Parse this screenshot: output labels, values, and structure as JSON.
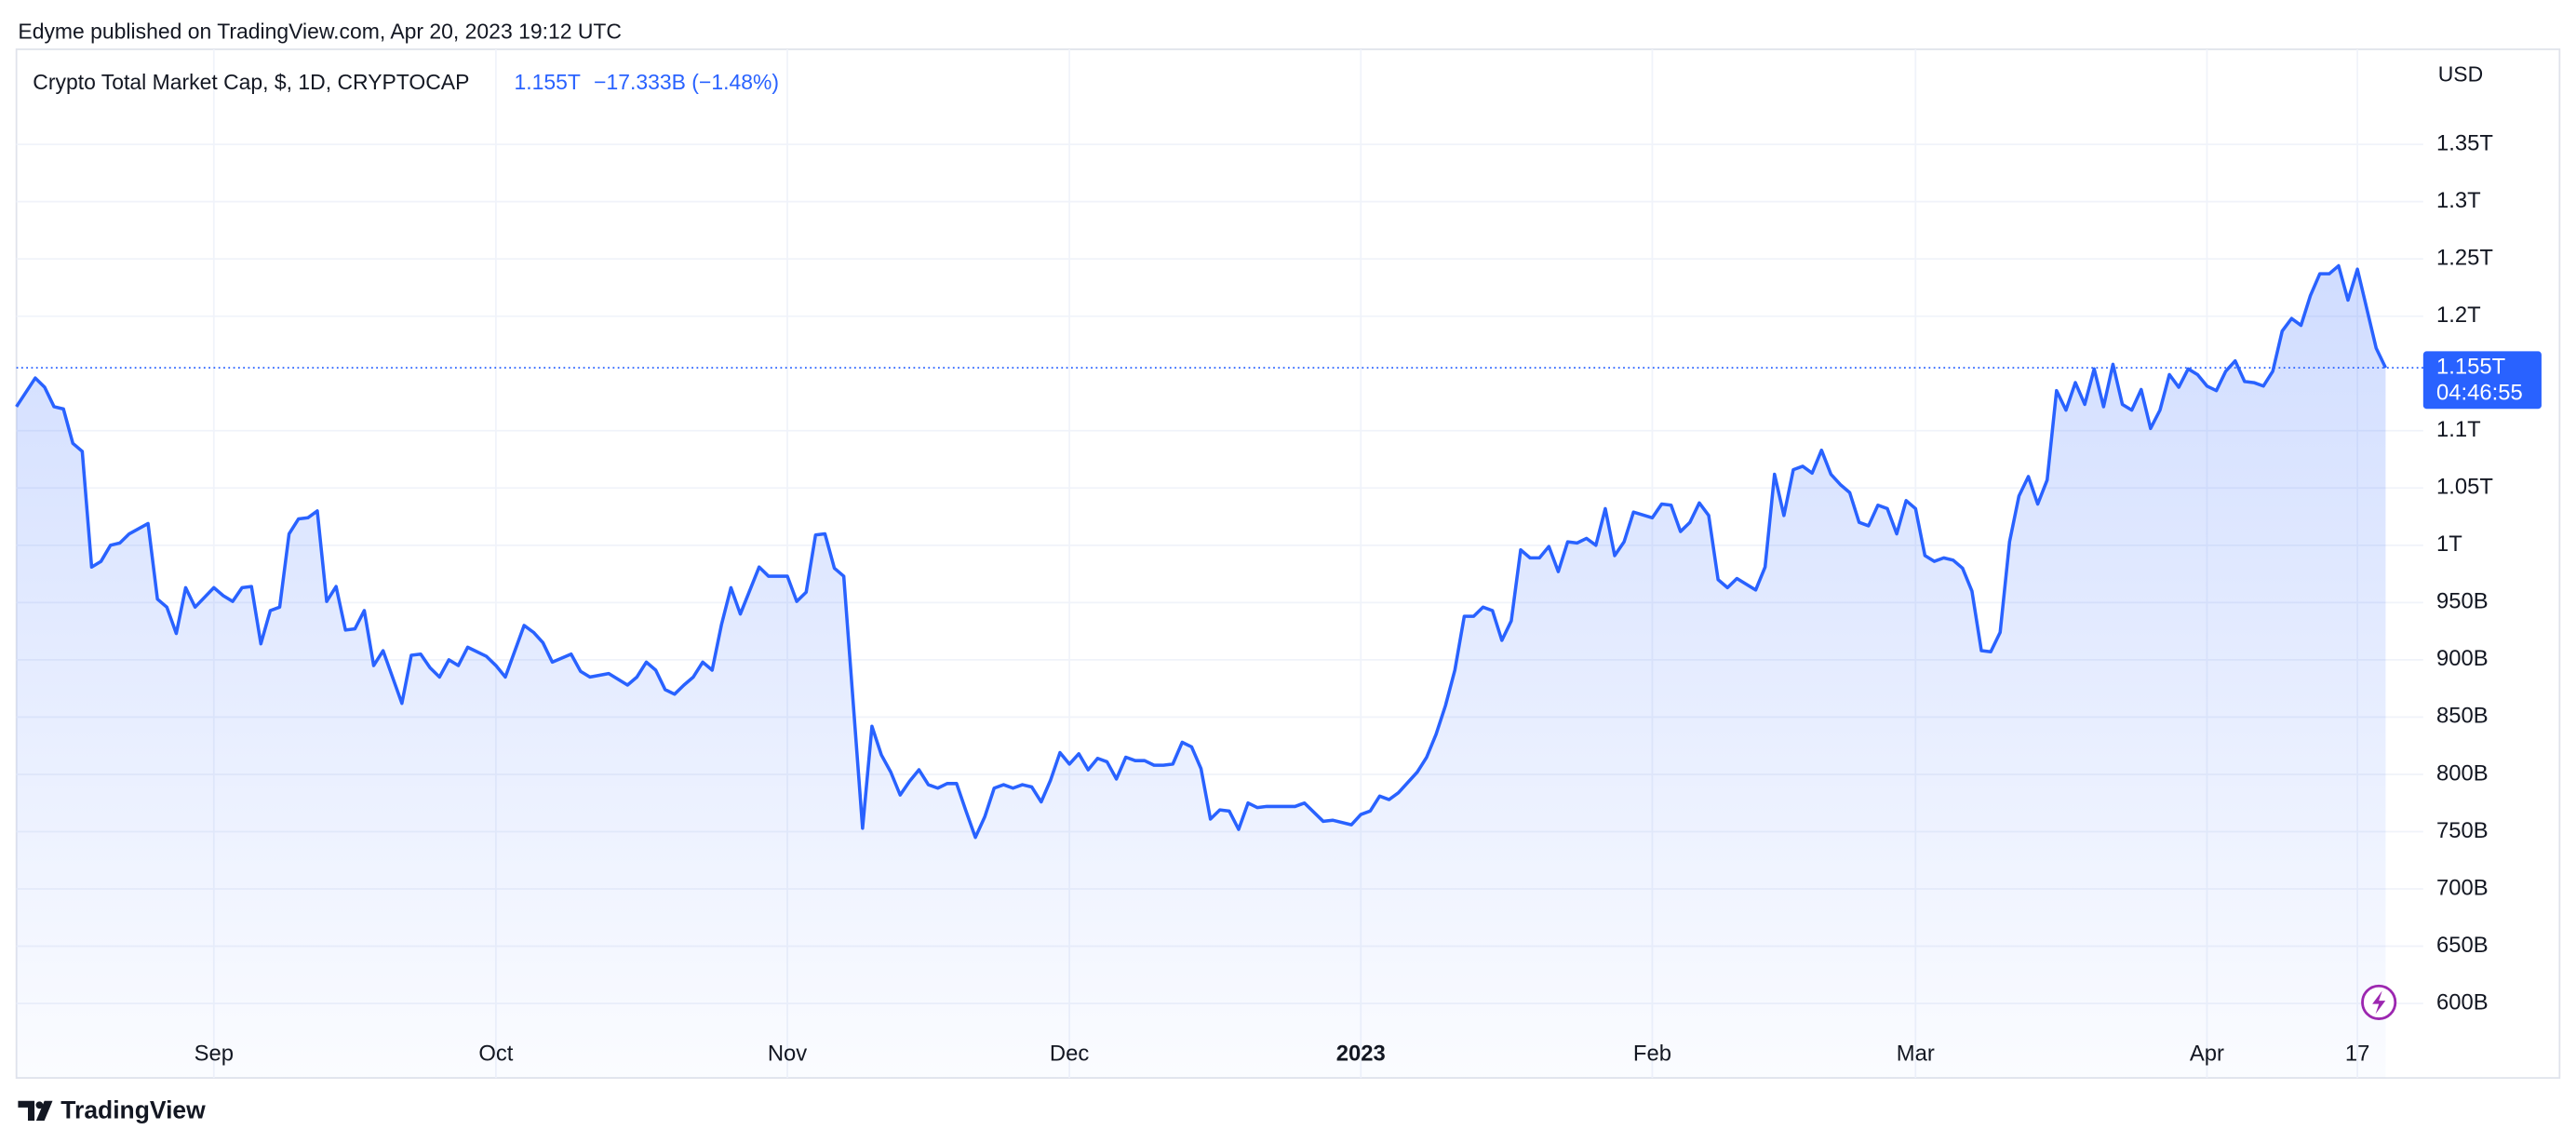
{
  "header": {
    "published": "Edyme published on TradingView.com, Apr 20, 2023 19:12 UTC"
  },
  "chart_data": {
    "type": "line",
    "title": "Crypto Total Market Cap, $, 1D, CRYPTOCAP",
    "change": "−17.333B (−1.48%)",
    "currency": "USD",
    "countdown": "04:46:55",
    "price_line": {
      "value": 1155,
      "label": "1.155T"
    },
    "color": "#2962ff",
    "grid": true,
    "xlim": [
      "2022-08-11",
      "2023-04-24"
    ],
    "ylim": [
      535,
      1433
    ],
    "xticks": [
      {
        "value": "2022-09-01",
        "label": "Sep"
      },
      {
        "value": "2022-10-01",
        "label": "Oct"
      },
      {
        "value": "2022-11-01",
        "label": "Nov"
      },
      {
        "value": "2022-12-01",
        "label": "Dec"
      },
      {
        "value": "2023-01-01",
        "label": "2023"
      },
      {
        "value": "2023-02-01",
        "label": "Feb"
      },
      {
        "value": "2023-03-01",
        "label": "Mar"
      },
      {
        "value": "2023-04-01",
        "label": "Apr"
      },
      {
        "value": "2023-04-17",
        "label": "17"
      }
    ],
    "yticks": [
      {
        "value": 600,
        "label": "600B"
      },
      {
        "value": 650,
        "label": "650B"
      },
      {
        "value": 700,
        "label": "700B"
      },
      {
        "value": 750,
        "label": "750B"
      },
      {
        "value": 800,
        "label": "800B"
      },
      {
        "value": 850,
        "label": "850B"
      },
      {
        "value": 900,
        "label": "900B"
      },
      {
        "value": 950,
        "label": "950B"
      },
      {
        "value": 1000,
        "label": "1T"
      },
      {
        "value": 1050,
        "label": "1.05T"
      },
      {
        "value": 1100,
        "label": "1.1T"
      },
      {
        "value": 1200,
        "label": "1.2T"
      },
      {
        "value": 1250,
        "label": "1.25T"
      },
      {
        "value": 1300,
        "label": "1.3T"
      },
      {
        "value": 1350,
        "label": "1.35T"
      }
    ],
    "x": [
      "2022-08-11",
      "2022-08-13",
      "2022-08-14",
      "2022-08-15",
      "2022-08-16",
      "2022-08-17",
      "2022-08-18",
      "2022-08-19",
      "2022-08-20",
      "2022-08-21",
      "2022-08-22",
      "2022-08-23",
      "2022-08-25",
      "2022-08-26",
      "2022-08-27",
      "2022-08-28",
      "2022-08-29",
      "2022-08-30",
      "2022-09-01",
      "2022-09-02",
      "2022-09-03",
      "2022-09-04",
      "2022-09-05",
      "2022-09-06",
      "2022-09-07",
      "2022-09-08",
      "2022-09-09",
      "2022-09-10",
      "2022-09-11",
      "2022-09-12",
      "2022-09-13",
      "2022-09-14",
      "2022-09-15",
      "2022-09-16",
      "2022-09-17",
      "2022-09-18",
      "2022-09-19",
      "2022-09-21",
      "2022-09-22",
      "2022-09-23",
      "2022-09-24",
      "2022-09-25",
      "2022-09-26",
      "2022-09-27",
      "2022-09-28",
      "2022-09-30",
      "2022-10-01",
      "2022-10-02",
      "2022-10-04",
      "2022-10-05",
      "2022-10-06",
      "2022-10-07",
      "2022-10-09",
      "2022-10-10",
      "2022-10-11",
      "2022-10-13",
      "2022-10-15",
      "2022-10-16",
      "2022-10-17",
      "2022-10-18",
      "2022-10-19",
      "2022-10-20",
      "2022-10-21",
      "2022-10-22",
      "2022-10-23",
      "2022-10-24",
      "2022-10-25",
      "2022-10-26",
      "2022-10-27",
      "2022-10-29",
      "2022-10-30",
      "2022-11-01",
      "2022-11-02",
      "2022-11-03",
      "2022-11-04",
      "2022-11-05",
      "2022-11-06",
      "2022-11-07",
      "2022-11-09",
      "2022-11-10",
      "2022-11-11",
      "2022-11-12",
      "2022-11-13",
      "2022-11-14",
      "2022-11-15",
      "2022-11-16",
      "2022-11-17",
      "2022-11-18",
      "2022-11-19",
      "2022-11-20",
      "2022-11-21",
      "2022-11-22",
      "2022-11-23",
      "2022-11-24",
      "2022-11-25",
      "2022-11-26",
      "2022-11-27",
      "2022-11-28",
      "2022-11-29",
      "2022-11-30",
      "2022-12-01",
      "2022-12-02",
      "2022-12-03",
      "2022-12-04",
      "2022-12-05",
      "2022-12-06",
      "2022-12-07",
      "2022-12-08",
      "2022-12-09",
      "2022-12-10",
      "2022-12-11",
      "2022-12-12",
      "2022-12-13",
      "2022-12-14",
      "2022-12-15",
      "2022-12-16",
      "2022-12-17",
      "2022-12-18",
      "2022-12-19",
      "2022-12-20",
      "2022-12-21",
      "2022-12-22",
      "2022-12-24",
      "2022-12-25",
      "2022-12-26",
      "2022-12-28",
      "2022-12-29",
      "2022-12-31",
      "2023-01-01",
      "2023-01-02",
      "2023-01-03",
      "2023-01-04",
      "2023-01-05",
      "2023-01-07",
      "2023-01-08",
      "2023-01-09",
      "2023-01-10",
      "2023-01-11",
      "2023-01-12",
      "2023-01-13",
      "2023-01-14",
      "2023-01-15",
      "2023-01-16",
      "2023-01-17",
      "2023-01-18",
      "2023-01-19",
      "2023-01-20",
      "2023-01-21",
      "2023-01-22",
      "2023-01-23",
      "2023-01-24",
      "2023-01-25",
      "2023-01-26",
      "2023-01-27",
      "2023-01-28",
      "2023-01-29",
      "2023-01-30",
      "2023-02-01",
      "2023-02-02",
      "2023-02-03",
      "2023-02-04",
      "2023-02-05",
      "2023-02-06",
      "2023-02-07",
      "2023-02-08",
      "2023-02-09",
      "2023-02-10",
      "2023-02-12",
      "2023-02-13",
      "2023-02-14",
      "2023-02-15",
      "2023-02-16",
      "2023-02-17",
      "2023-02-18",
      "2023-02-19",
      "2023-02-20",
      "2023-02-21",
      "2023-02-22",
      "2023-02-23",
      "2023-02-24",
      "2023-02-25",
      "2023-02-26",
      "2023-02-27",
      "2023-02-28",
      "2023-03-01",
      "2023-03-02",
      "2023-03-03",
      "2023-03-04",
      "2023-03-05",
      "2023-03-06",
      "2023-03-07",
      "2023-03-08",
      "2023-03-09",
      "2023-03-10",
      "2023-03-11",
      "2023-03-12",
      "2023-03-13",
      "2023-03-14",
      "2023-03-15",
      "2023-03-16",
      "2023-03-17",
      "2023-03-18",
      "2023-03-19",
      "2023-03-20",
      "2023-03-21",
      "2023-03-22",
      "2023-03-23",
      "2023-03-24",
      "2023-03-25",
      "2023-03-26",
      "2023-03-27",
      "2023-03-28",
      "2023-03-29",
      "2023-03-30",
      "2023-03-31",
      "2023-04-01",
      "2023-04-02",
      "2023-04-03",
      "2023-04-04",
      "2023-04-05",
      "2023-04-06",
      "2023-04-07",
      "2023-04-08",
      "2023-04-09",
      "2023-04-10",
      "2023-04-11",
      "2023-04-12",
      "2023-04-13",
      "2023-04-14",
      "2023-04-15",
      "2023-04-16",
      "2023-04-17",
      "2023-04-19",
      "2023-04-20"
    ],
    "values": [
      1121,
      1146,
      1138,
      1121,
      1119,
      1089,
      1082,
      981,
      986,
      1000,
      1002,
      1010,
      1019,
      953,
      946,
      923,
      963,
      946,
      963,
      956,
      951,
      963,
      964,
      914,
      943,
      946,
      1010,
      1023,
      1024,
      1030,
      951,
      964,
      926,
      927,
      943,
      895,
      908,
      862,
      904,
      905,
      893,
      885,
      900,
      895,
      911,
      903,
      895,
      885,
      930,
      924,
      915,
      898,
      905,
      890,
      885,
      888,
      878,
      885,
      898,
      891,
      874,
      870,
      878,
      885,
      898,
      891,
      931,
      963,
      940,
      981,
      973,
      973,
      951,
      959,
      1009,
      1010,
      980,
      973,
      753,
      842,
      817,
      802,
      782,
      794,
      804,
      791,
      788,
      792,
      792,
      768,
      745,
      763,
      788,
      791,
      788,
      791,
      789,
      776,
      795,
      819,
      809,
      818,
      804,
      814,
      811,
      796,
      815,
      812,
      812,
      808,
      808,
      809,
      828,
      824,
      805,
      761,
      769,
      768,
      752,
      775,
      771,
      772,
      772,
      772,
      775,
      759,
      760,
      756,
      765,
      768,
      781,
      778,
      784,
      802,
      815,
      835,
      860,
      891,
      938,
      938,
      946,
      943,
      917,
      934,
      996,
      989,
      989,
      999,
      977,
      1003,
      1002,
      1006,
      1000,
      1032,
      991,
      1003,
      1029,
      1024,
      1036,
      1035,
      1012,
      1020,
      1037,
      1026,
      970,
      963,
      971,
      961,
      981,
      1062,
      1026,
      1066,
      1069,
      1063,
      1083,
      1062,
      1053,
      1046,
      1020,
      1017,
      1035,
      1032,
      1010,
      1039,
      1032,
      991,
      986,
      989,
      987,
      980,
      960,
      908,
      907,
      924,
      1003,
      1043,
      1060,
      1036,
      1057,
      1135,
      1118,
      1142,
      1123,
      1154,
      1121,
      1158,
      1123,
      1118,
      1136,
      1102,
      1118,
      1149,
      1138,
      1154,
      1149,
      1139,
      1135,
      1152,
      1161,
      1143,
      1142,
      1139,
      1152,
      1187,
      1198,
      1192,
      1218,
      1237,
      1237,
      1244,
      1214,
      1241,
      1172,
      1155
    ]
  },
  "footer": {
    "brand": "TradingView"
  }
}
